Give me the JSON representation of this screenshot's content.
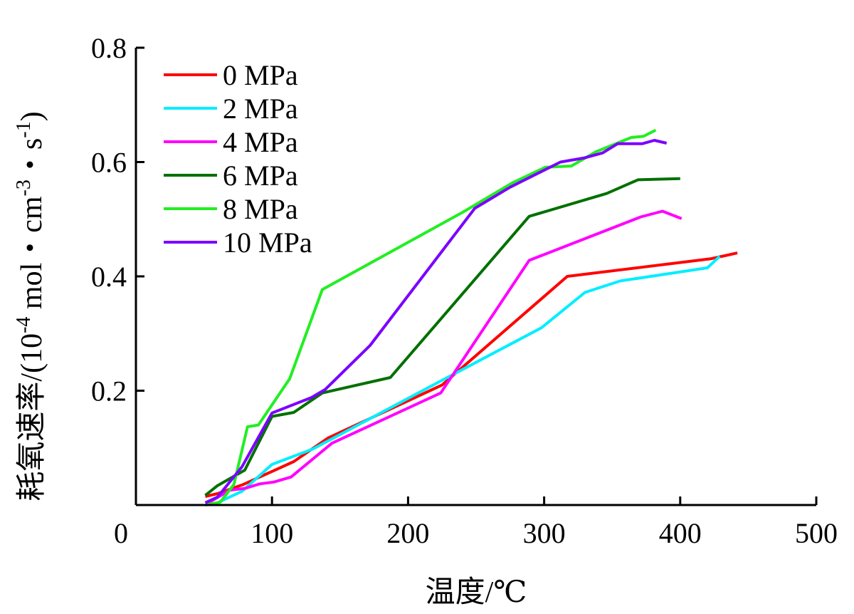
{
  "chart_data": {
    "type": "line",
    "xlabel": "温度/℃",
    "ylabel_main": "耗氧速率/(10",
    "ylabel_parts": [
      "-4",
      " mol・cm",
      "-3",
      "・s",
      "-1",
      ")"
    ],
    "xlim": [
      0,
      500
    ],
    "ylim": [
      0,
      0.8
    ],
    "xticks": [
      "0",
      "100",
      "200",
      "300",
      "400",
      "500"
    ],
    "yticks": [
      "0.2",
      "0.4",
      "0.6",
      "0.8"
    ],
    "grid": false,
    "legend_position": "top-left",
    "series": [
      {
        "name": "0 MPa",
        "color": "#ff0000",
        "points": [
          [
            51,
            0.015
          ],
          [
            60,
            0.02
          ],
          [
            79,
            0.036
          ],
          [
            116,
            0.076
          ],
          [
            141,
            0.117
          ],
          [
            225,
            0.21
          ],
          [
            317,
            0.4
          ],
          [
            423,
            0.431
          ],
          [
            442,
            0.441
          ]
        ]
      },
      {
        "name": "2 MPa",
        "color": "#00eeff",
        "points": [
          [
            51,
            0.0
          ],
          [
            60,
            0.004
          ],
          [
            78,
            0.024
          ],
          [
            100,
            0.071
          ],
          [
            130,
            0.098
          ],
          [
            224,
            0.217
          ],
          [
            298,
            0.31
          ],
          [
            330,
            0.372
          ],
          [
            356,
            0.392
          ],
          [
            420,
            0.415
          ],
          [
            429,
            0.435
          ]
        ]
      },
      {
        "name": "4 MPa",
        "color": "#ff00ff",
        "points": [
          [
            52,
            0.002
          ],
          [
            69,
            0.026
          ],
          [
            80,
            0.029
          ],
          [
            91,
            0.037
          ],
          [
            101,
            0.04
          ],
          [
            114,
            0.049
          ],
          [
            144,
            0.108
          ],
          [
            224,
            0.196
          ],
          [
            289,
            0.428
          ],
          [
            371,
            0.504
          ],
          [
            387,
            0.514
          ],
          [
            401,
            0.501
          ]
        ]
      },
      {
        "name": "6 MPa",
        "color": "#007000",
        "points": [
          [
            51,
            0.017
          ],
          [
            60,
            0.034
          ],
          [
            80,
            0.061
          ],
          [
            100,
            0.155
          ],
          [
            116,
            0.162
          ],
          [
            137,
            0.196
          ],
          [
            187,
            0.223
          ],
          [
            289,
            0.505
          ],
          [
            346,
            0.545
          ],
          [
            369,
            0.569
          ],
          [
            400,
            0.571
          ]
        ]
      },
      {
        "name": "8 MPa",
        "color": "#22ee22",
        "points": [
          [
            51,
            0.0
          ],
          [
            62,
            0.005
          ],
          [
            72,
            0.036
          ],
          [
            82,
            0.137
          ],
          [
            90,
            0.14
          ],
          [
            113,
            0.221
          ],
          [
            137,
            0.377
          ],
          [
            240,
            0.512
          ],
          [
            277,
            0.564
          ],
          [
            301,
            0.591
          ],
          [
            320,
            0.593
          ],
          [
            338,
            0.618
          ],
          [
            364,
            0.643
          ],
          [
            373,
            0.645
          ],
          [
            382,
            0.656
          ]
        ]
      },
      {
        "name": "10 MPa",
        "color": "#7a00ff",
        "points": [
          [
            51,
            0.004
          ],
          [
            60,
            0.014
          ],
          [
            78,
            0.067
          ],
          [
            100,
            0.161
          ],
          [
            129,
            0.188
          ],
          [
            139,
            0.202
          ],
          [
            172,
            0.279
          ],
          [
            249,
            0.519
          ],
          [
            275,
            0.556
          ],
          [
            312,
            0.6
          ],
          [
            329,
            0.607
          ],
          [
            343,
            0.616
          ],
          [
            354,
            0.632
          ],
          [
            372,
            0.632
          ],
          [
            381,
            0.638
          ],
          [
            390,
            0.633
          ]
        ]
      }
    ]
  }
}
